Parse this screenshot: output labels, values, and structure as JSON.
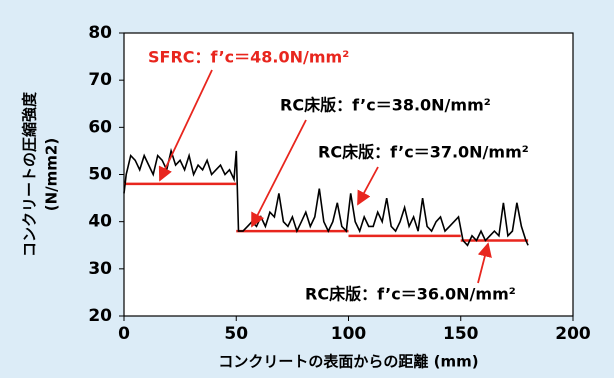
{
  "chart_data": {
    "type": "line",
    "xlabel": "コンクリートの表面からの距離 (mm)",
    "ylabel": [
      "コンクリートの圧縮強度",
      "(N/mm2)"
    ],
    "xlim": [
      0,
      200
    ],
    "xticks": [
      0,
      50,
      100,
      150,
      200
    ],
    "ylim": [
      20,
      80
    ],
    "yticks": [
      20,
      30,
      40,
      50,
      60,
      70,
      80
    ],
    "x": [
      0,
      1,
      3,
      5,
      7,
      9,
      11,
      13,
      15,
      17,
      19,
      21,
      23,
      25,
      27,
      29,
      31,
      33,
      35,
      37,
      39,
      41,
      43,
      45,
      47,
      49,
      50,
      51,
      53,
      55,
      57,
      59,
      61,
      63,
      65,
      67,
      69,
      71,
      73,
      75,
      77,
      79,
      81,
      83,
      85,
      87,
      89,
      91,
      93,
      95,
      97,
      99,
      101,
      103,
      105,
      107,
      109,
      111,
      113,
      115,
      117,
      119,
      121,
      123,
      125,
      127,
      129,
      131,
      133,
      135,
      137,
      139,
      141,
      143,
      145,
      147,
      149,
      151,
      153,
      155,
      157,
      159,
      161,
      163,
      165,
      167,
      169,
      171,
      173,
      175,
      177,
      179,
      180
    ],
    "series": [
      {
        "color": "#000000",
        "values": [
          46,
          50,
          54,
          53,
          51,
          54,
          52,
          50,
          54,
          53,
          51,
          55,
          52,
          53,
          51,
          54,
          50,
          52,
          51,
          53,
          50,
          51,
          52,
          50,
          51,
          49,
          55,
          38,
          38,
          39,
          40,
          39,
          41,
          39,
          42,
          41,
          46,
          40,
          39,
          41,
          38,
          40,
          42,
          39,
          41,
          47,
          40,
          38,
          40,
          44,
          39,
          38,
          46,
          40,
          38,
          41,
          39,
          39,
          42,
          40,
          45,
          39,
          38,
          40,
          43,
          39,
          41,
          38,
          45,
          39,
          38,
          40,
          41,
          38,
          39,
          40,
          41,
          36,
          35,
          37,
          36,
          38,
          36,
          37,
          38,
          37,
          44,
          37,
          38,
          44,
          39,
          36,
          35
        ]
      }
    ],
    "mean_lines": {
      "color": "#e8261e",
      "segments": [
        {
          "x": [
            0,
            50
          ],
          "value": 48,
          "label": "SFRC：f’c＝48.0N/mm²"
        },
        {
          "x": [
            50,
            100
          ],
          "value": 38,
          "label": "RC床版：f’c＝38.0N/mm²"
        },
        {
          "x": [
            100,
            150
          ],
          "value": 37,
          "label": "RC床版：f’c＝37.0N/mm²"
        },
        {
          "x": [
            150,
            180
          ],
          "value": 36,
          "label": "RC床版：f’c＝36.0N/mm²"
        }
      ]
    }
  }
}
